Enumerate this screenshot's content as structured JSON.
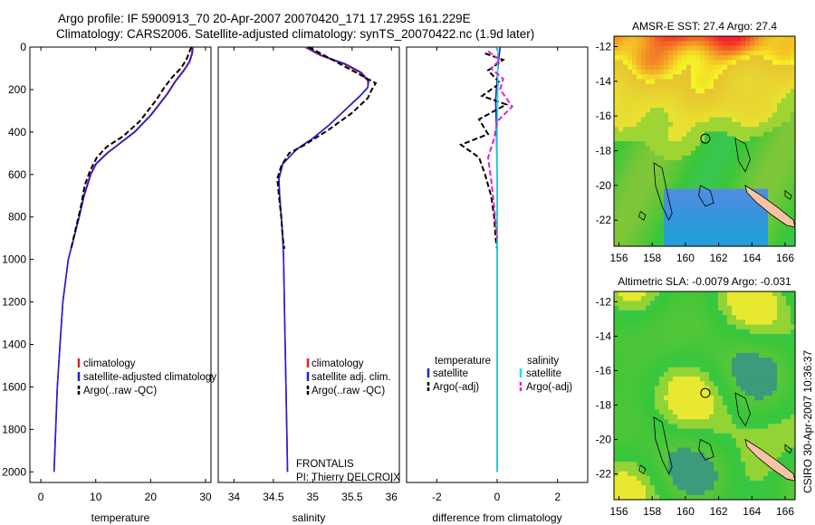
{
  "title": {
    "line1": "Argo profile: IF 5900913_70 20-Apr-2007 20070420_171 17.295S 161.229E",
    "line2": "Climatology: CARS2006. Satellite-adjusted climatology: synTS_20070422.nc (1.9d later)"
  },
  "credit": "CSIRO 30-Apr-2007 10:36:37",
  "colors": {
    "climatology": "#e02020",
    "satellite": "#1f1fd8",
    "argo": "#000000",
    "sat_diff_s": "#22dde8",
    "argo_diff_s": "#e020d8",
    "coast": "#f5c4a4"
  },
  "chart_data": [
    {
      "type": "line",
      "id": "temperature",
      "xlabel": "temperature",
      "xlim": [
        -2,
        31
      ],
      "xticks": [
        0,
        10,
        20,
        30
      ],
      "ylim": [
        0,
        2050
      ],
      "yticks": [
        0,
        200,
        400,
        600,
        800,
        1000,
        1200,
        1400,
        1600,
        1800,
        2000
      ],
      "legend": [
        "climatology",
        "satellite-adjusted climatology",
        "Argo(..raw -QC)"
      ],
      "series": [
        {
          "name": "climatology",
          "color": "#e02020",
          "dash": false,
          "points": [
            [
              27.6,
              0
            ],
            [
              27.5,
              30
            ],
            [
              27.0,
              70
            ],
            [
              26.0,
              110
            ],
            [
              24.5,
              160
            ],
            [
              23.0,
              220
            ],
            [
              21.5,
              270
            ],
            [
              20.0,
              320
            ],
            [
              17.0,
              400
            ],
            [
              14.5,
              450
            ],
            [
              12.0,
              500
            ],
            [
              10.0,
              550
            ],
            [
              9.0,
              600
            ],
            [
              7.8,
              700
            ],
            [
              7.0,
              800
            ],
            [
              6.0,
              900
            ],
            [
              5.0,
              1000
            ],
            [
              4.5,
              1100
            ],
            [
              4.0,
              1200
            ],
            [
              3.5,
              1400
            ],
            [
              3.0,
              1600
            ],
            [
              2.7,
              1800
            ],
            [
              2.4,
              2000
            ]
          ]
        },
        {
          "name": "satellite-adjusted climatology",
          "color": "#1f1fd8",
          "dash": false,
          "points": [
            [
              27.7,
              0
            ],
            [
              27.6,
              30
            ],
            [
              27.1,
              70
            ],
            [
              26.1,
              110
            ],
            [
              24.6,
              160
            ],
            [
              23.1,
              220
            ],
            [
              21.6,
              270
            ],
            [
              20.1,
              320
            ],
            [
              17.1,
              400
            ],
            [
              14.6,
              450
            ],
            [
              12.1,
              500
            ],
            [
              10.1,
              550
            ],
            [
              9.1,
              600
            ],
            [
              7.9,
              700
            ],
            [
              7.0,
              800
            ],
            [
              6.0,
              900
            ],
            [
              5.0,
              1000
            ],
            [
              4.5,
              1100
            ],
            [
              4.0,
              1200
            ],
            [
              3.5,
              1400
            ],
            [
              3.0,
              1600
            ],
            [
              2.7,
              1800
            ],
            [
              2.4,
              2000
            ]
          ]
        },
        {
          "name": "Argo(..raw -QC)",
          "color": "#000000",
          "dash": true,
          "points": [
            [
              27.4,
              0
            ],
            [
              26.5,
              60
            ],
            [
              25.5,
              100
            ],
            [
              24.0,
              140
            ],
            [
              22.5,
              190
            ],
            [
              21.0,
              250
            ],
            [
              19.5,
              300
            ],
            [
              18.0,
              350
            ],
            [
              15.0,
              420
            ],
            [
              12.0,
              470
            ],
            [
              10.2,
              520
            ],
            [
              9.0,
              580
            ],
            [
              8.0,
              650
            ],
            [
              7.3,
              750
            ],
            [
              6.4,
              850
            ],
            [
              5.5,
              950
            ]
          ]
        }
      ]
    },
    {
      "type": "line",
      "id": "salinity",
      "xlabel": "salinity",
      "xlim": [
        33.8,
        36.1
      ],
      "xticks": [
        34,
        34.5,
        35,
        35.5,
        36
      ],
      "ylim": [
        0,
        2050
      ],
      "legend": [
        "climatology",
        "satellite adj. clim.",
        "Argo(..raw -QC)"
      ],
      "annotation": [
        "FRONTALIS",
        "PI: Thierry DELCROIX"
      ],
      "series": [
        {
          "name": "climatology",
          "color": "#e02020",
          "dash": false,
          "points": [
            [
              34.9,
              0
            ],
            [
              35.1,
              40
            ],
            [
              35.4,
              80
            ],
            [
              35.6,
              120
            ],
            [
              35.7,
              160
            ],
            [
              35.7,
              190
            ],
            [
              35.6,
              230
            ],
            [
              35.4,
              300
            ],
            [
              35.2,
              370
            ],
            [
              35.0,
              430
            ],
            [
              34.8,
              480
            ],
            [
              34.62,
              550
            ],
            [
              34.57,
              620
            ],
            [
              34.58,
              700
            ],
            [
              34.6,
              800
            ],
            [
              34.62,
              900
            ],
            [
              34.63,
              1000
            ],
            [
              34.64,
              1200
            ],
            [
              34.65,
              1400
            ],
            [
              34.66,
              1600
            ],
            [
              34.67,
              1800
            ],
            [
              34.68,
              2000
            ]
          ]
        },
        {
          "name": "satellite adj. clim.",
          "color": "#1f1fd8",
          "dash": false,
          "points": [
            [
              34.92,
              0
            ],
            [
              35.12,
              40
            ],
            [
              35.42,
              80
            ],
            [
              35.62,
              120
            ],
            [
              35.71,
              160
            ],
            [
              35.7,
              190
            ],
            [
              35.6,
              230
            ],
            [
              35.4,
              300
            ],
            [
              35.2,
              370
            ],
            [
              35.0,
              430
            ],
            [
              34.8,
              480
            ],
            [
              34.62,
              550
            ],
            [
              34.57,
              620
            ],
            [
              34.58,
              700
            ],
            [
              34.6,
              800
            ],
            [
              34.62,
              900
            ],
            [
              34.63,
              1000
            ],
            [
              34.64,
              1200
            ],
            [
              34.65,
              1400
            ],
            [
              34.66,
              1600
            ],
            [
              34.67,
              1800
            ],
            [
              34.68,
              2000
            ]
          ]
        },
        {
          "name": "Argo(..raw -QC)",
          "color": "#000000",
          "dash": true,
          "points": [
            [
              34.95,
              0
            ],
            [
              35.1,
              30
            ],
            [
              35.4,
              90
            ],
            [
              35.7,
              150
            ],
            [
              35.8,
              170
            ],
            [
              35.75,
              200
            ],
            [
              35.7,
              240
            ],
            [
              35.5,
              310
            ],
            [
              35.2,
              390
            ],
            [
              34.9,
              460
            ],
            [
              34.7,
              500
            ],
            [
              34.6,
              560
            ],
            [
              34.55,
              620
            ],
            [
              34.57,
              700
            ],
            [
              34.6,
              800
            ],
            [
              34.62,
              900
            ],
            [
              34.64,
              950
            ]
          ]
        }
      ]
    },
    {
      "type": "line",
      "id": "difference",
      "xlabel": "difference from climatology",
      "xlim": [
        -3,
        3
      ],
      "xticks": [
        -2,
        0,
        2
      ],
      "ylim": [
        0,
        2050
      ],
      "legend_headers": [
        "temperature",
        "salinity"
      ],
      "legend_left": [
        "satellite",
        "Argo(-adj)"
      ],
      "legend_right": [
        "satellite",
        "Argo(-adj)"
      ],
      "series": [
        {
          "name": "temperature satellite",
          "color": "#1f1fd8",
          "dash": false,
          "points": [
            [
              0.1,
              0
            ],
            [
              0.05,
              60
            ],
            [
              0.0,
              150
            ],
            [
              -0.05,
              250
            ],
            [
              -0.02,
              400
            ],
            [
              0.0,
              600
            ],
            [
              0.0,
              1000
            ],
            [
              0.0,
              2000
            ]
          ]
        },
        {
          "name": "temperature Argo(-adj)",
          "color": "#000000",
          "dash": true,
          "points": [
            [
              -0.4,
              30
            ],
            [
              0.2,
              60
            ],
            [
              -0.3,
              110
            ],
            [
              0.1,
              170
            ],
            [
              -0.5,
              230
            ],
            [
              0.3,
              270
            ],
            [
              -0.6,
              340
            ],
            [
              -0.3,
              410
            ],
            [
              -1.2,
              460
            ],
            [
              -0.6,
              520
            ],
            [
              -0.4,
              600
            ],
            [
              -0.2,
              700
            ],
            [
              -0.1,
              800
            ],
            [
              -0.05,
              900
            ],
            [
              0.0,
              950
            ]
          ]
        },
        {
          "name": "salinity satellite",
          "color": "#22dde8",
          "dash": false,
          "points": [
            [
              0.02,
              0
            ],
            [
              0.02,
              200
            ],
            [
              0.0,
              400
            ],
            [
              0.0,
              1000
            ],
            [
              0.0,
              1500
            ],
            [
              0.0,
              2000
            ]
          ]
        },
        {
          "name": "salinity Argo(-adj)",
          "color": "#e020d8",
          "dash": true,
          "points": [
            [
              -0.3,
              20
            ],
            [
              0.1,
              60
            ],
            [
              -0.2,
              100
            ],
            [
              0.2,
              150
            ],
            [
              0.1,
              200
            ],
            [
              0.5,
              280
            ],
            [
              0.0,
              350
            ],
            [
              -0.1,
              430
            ],
            [
              -0.3,
              520
            ],
            [
              -0.2,
              620
            ],
            [
              -0.1,
              750
            ],
            [
              0.0,
              900
            ]
          ]
        }
      ]
    },
    {
      "type": "heatmap",
      "id": "sst_map",
      "title": "AMSR-E SST: 27.4 Argo: 27.4",
      "xticks": [
        156,
        158,
        160,
        162,
        164,
        166
      ],
      "yticks": [
        -12,
        -14,
        -16,
        -18,
        -20,
        -22
      ],
      "xlim": [
        155.7,
        166.6
      ],
      "ylim": [
        -23.5,
        -11.4
      ]
    },
    {
      "type": "heatmap",
      "id": "sla_map",
      "title": "Altimetric SLA: -0.0079 Argo: -0.031",
      "xticks": [
        156,
        158,
        160,
        162,
        164,
        166
      ],
      "yticks": [
        -12,
        -14,
        -16,
        -18,
        -20,
        -22
      ],
      "xlim": [
        155.7,
        166.6
      ],
      "ylim": [
        -23.5,
        -11.4
      ]
    }
  ]
}
